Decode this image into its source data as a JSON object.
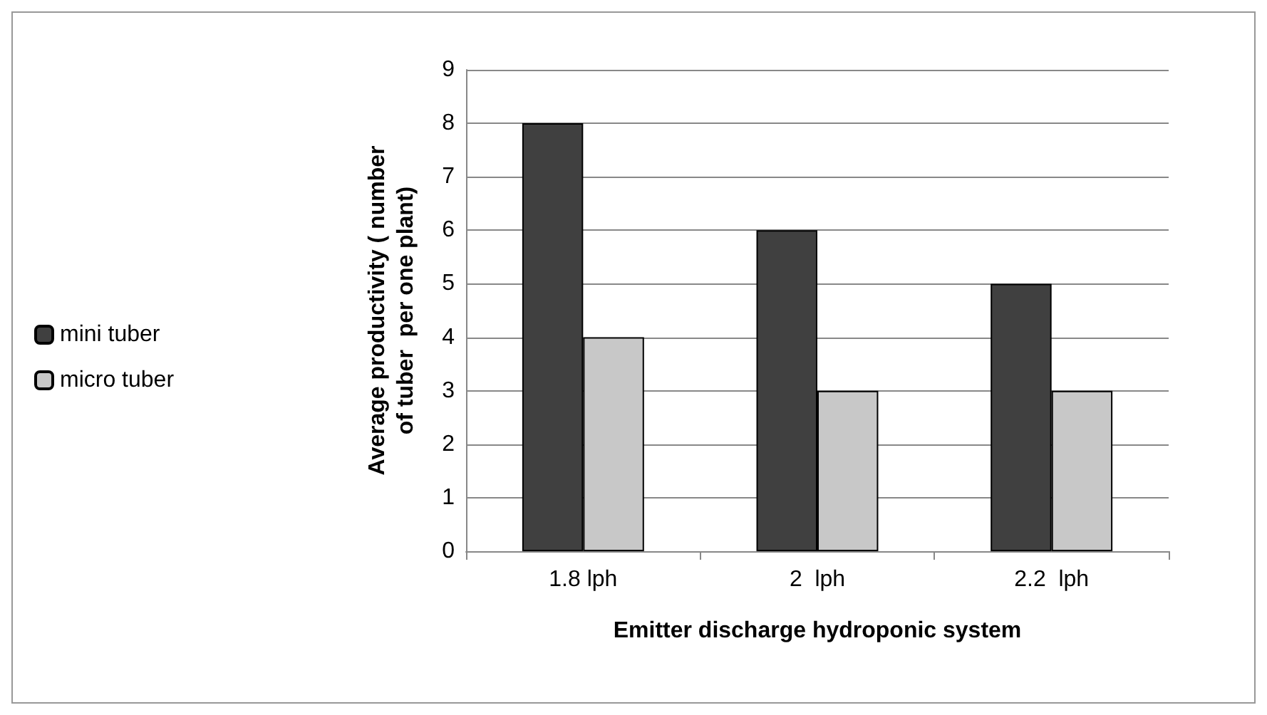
{
  "chart_data": {
    "type": "bar",
    "xlabel": "Emitter discharge hydroponic system",
    "ylabel": "Average productivity ( number of tuber  per one plant)",
    "categories": [
      "1.8 lph",
      "2  lph",
      "2.2  lph"
    ],
    "series": [
      {
        "name": "mini tuber",
        "color": "#404040",
        "values": [
          8,
          6,
          5
        ]
      },
      {
        "name": "micro tuber",
        "color": "#c8c8c8",
        "values": [
          4,
          3,
          3
        ]
      }
    ],
    "ylim": [
      0,
      9
    ],
    "yticks": [
      0,
      1,
      2,
      3,
      4,
      5,
      6,
      7,
      8,
      9
    ],
    "grid": "y",
    "legend": "left"
  }
}
